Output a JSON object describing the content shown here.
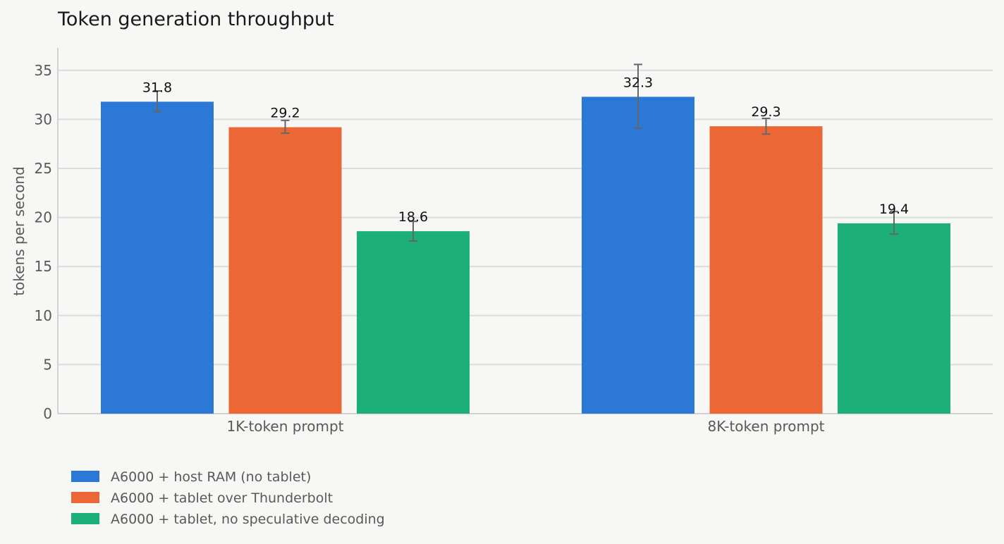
{
  "chart_data": {
    "type": "bar",
    "title": "Token generation throughput",
    "xlabel": "",
    "ylabel": "tokens per second",
    "ylim": [
      0,
      37
    ],
    "yticks": [
      0,
      5,
      10,
      15,
      20,
      25,
      30,
      35
    ],
    "grid": true,
    "legend_position": "bottom-left",
    "categories": [
      "1K-token prompt",
      "8K-token prompt"
    ],
    "series": [
      {
        "name": "A6000 + host RAM (no tablet)",
        "color": "#2b78d6",
        "values": [
          31.8,
          32.3
        ],
        "labels": [
          "31.8",
          "32.3"
        ],
        "error": [
          [
            30.8,
            32.9
          ],
          [
            29.1,
            35.6
          ]
        ]
      },
      {
        "name": "A6000 + tablet over Thunderbolt",
        "color": "#eb6836",
        "values": [
          29.2,
          29.3
        ],
        "labels": [
          "29.2",
          "29.3"
        ],
        "error": [
          [
            28.6,
            29.9
          ],
          [
            28.5,
            30.1
          ]
        ]
      },
      {
        "name": "A6000 + tablet, no speculative decoding",
        "color": "#1cb078",
        "values": [
          18.6,
          19.4
        ],
        "labels": [
          "18.6",
          "19.4"
        ],
        "error": [
          [
            17.6,
            19.6
          ],
          [
            18.3,
            20.6
          ]
        ]
      }
    ]
  }
}
